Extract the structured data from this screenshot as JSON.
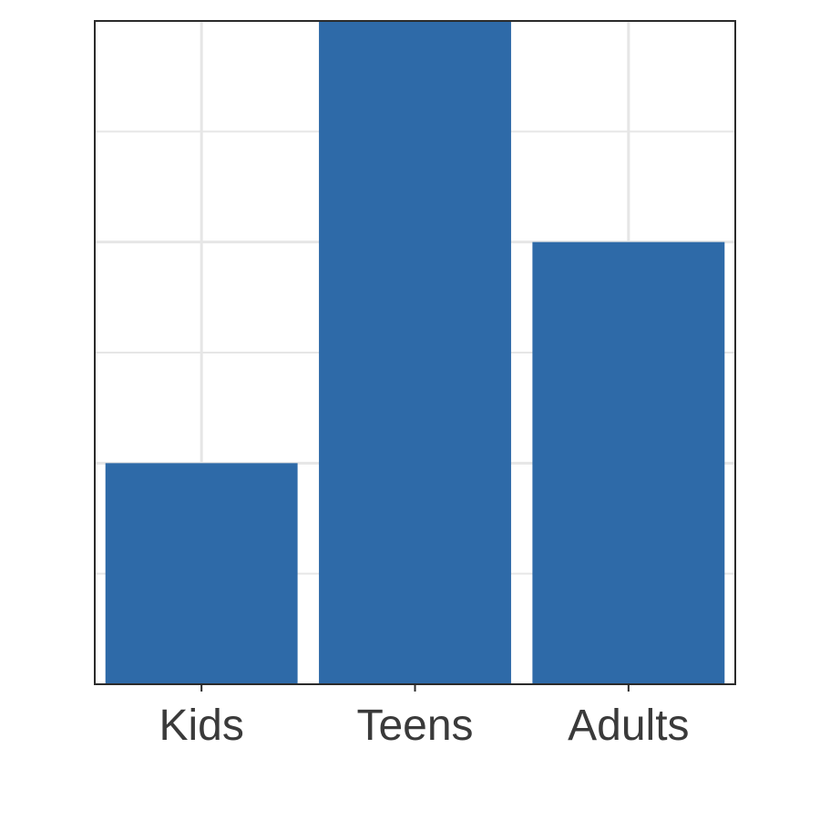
{
  "chart_data": {
    "type": "bar",
    "categories": [
      "Kids",
      "Teens",
      "Adults"
    ],
    "values": [
      2,
      6,
      4
    ],
    "title": "",
    "xlabel": "",
    "ylabel": "",
    "ylim": [
      0,
      6
    ],
    "grid": true,
    "y_tick_labels_shown": false,
    "bar_color": "#2e6aa8",
    "grid_color": "#e6e6e6",
    "axis_color": "#2b2b2b",
    "text_color": "#3a3a3a"
  }
}
